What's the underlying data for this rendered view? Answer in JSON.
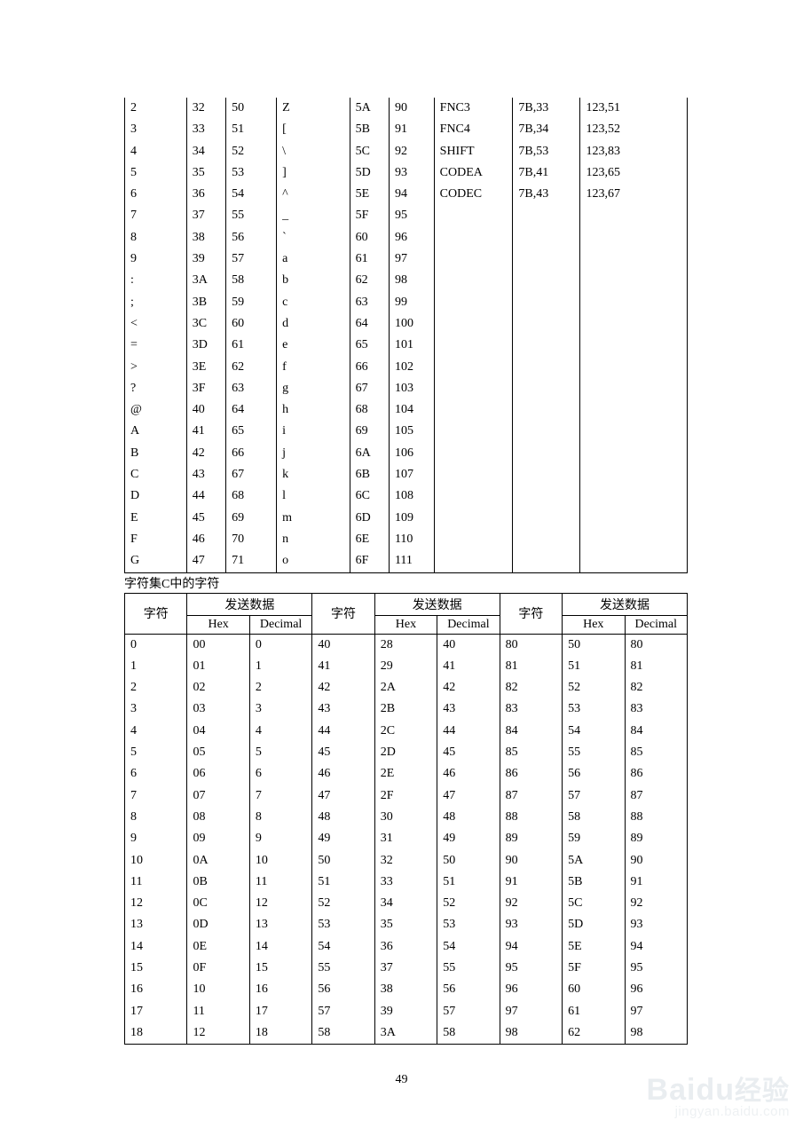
{
  "table1": {
    "rows": [
      [
        "2",
        "32",
        "50",
        "Z",
        "5A",
        "90",
        "FNC3",
        "7B,33",
        "123,51"
      ],
      [
        "3",
        "33",
        "51",
        "[",
        "5B",
        "91",
        "FNC4",
        "7B,34",
        "123,52"
      ],
      [
        "4",
        "34",
        "52",
        "\\",
        "5C",
        "92",
        "SHIFT",
        "7B,53",
        "123,83"
      ],
      [
        "5",
        "35",
        "53",
        "]",
        "5D",
        "93",
        "CODEA",
        "7B,41",
        "123,65"
      ],
      [
        "6",
        "36",
        "54",
        "^",
        "5E",
        "94",
        "CODEC",
        "7B,43",
        "123,67"
      ],
      [
        "7",
        "37",
        "55",
        "_",
        "5F",
        "95",
        "",
        "",
        ""
      ],
      [
        "8",
        "38",
        "56",
        "`",
        "60",
        "96",
        "",
        "",
        ""
      ],
      [
        "9",
        "39",
        "57",
        "a",
        "61",
        "97",
        "",
        "",
        ""
      ],
      [
        ":",
        "3A",
        "58",
        "b",
        "62",
        "98",
        "",
        "",
        ""
      ],
      [
        ";",
        "3B",
        "59",
        "c",
        "63",
        "99",
        "",
        "",
        ""
      ],
      [
        "<",
        "3C",
        "60",
        "d",
        "64",
        "100",
        "",
        "",
        ""
      ],
      [
        "=",
        "3D",
        "61",
        "e",
        "65",
        "101",
        "",
        "",
        ""
      ],
      [
        ">",
        "3E",
        "62",
        "f",
        "66",
        "102",
        "",
        "",
        ""
      ],
      [
        "?",
        "3F",
        "63",
        "g",
        "67",
        "103",
        "",
        "",
        ""
      ],
      [
        "@",
        "40",
        "64",
        "h",
        "68",
        "104",
        "",
        "",
        ""
      ],
      [
        "A",
        "41",
        "65",
        "i",
        "69",
        "105",
        "",
        "",
        ""
      ],
      [
        "B",
        "42",
        "66",
        "j",
        "6A",
        "106",
        "",
        "",
        ""
      ],
      [
        "C",
        "43",
        "67",
        "k",
        "6B",
        "107",
        "",
        "",
        ""
      ],
      [
        "D",
        "44",
        "68",
        "l",
        "6C",
        "108",
        "",
        "",
        ""
      ],
      [
        "E",
        "45",
        "69",
        "m",
        "6D",
        "109",
        "",
        "",
        ""
      ],
      [
        "F",
        "46",
        "70",
        "n",
        "6E",
        "110",
        "",
        "",
        ""
      ],
      [
        "G",
        "47",
        "71",
        "o",
        "6F",
        "111",
        "",
        "",
        ""
      ]
    ]
  },
  "caption": "字符集C中的字符",
  "table2": {
    "header": {
      "char": "字符",
      "send": "发送数据",
      "hex": "Hex",
      "dec": "Decimal"
    },
    "rows": [
      [
        "0",
        "00",
        "0",
        "40",
        "28",
        "40",
        "80",
        "50",
        "80"
      ],
      [
        "1",
        "01",
        "1",
        "41",
        "29",
        "41",
        "81",
        "51",
        "81"
      ],
      [
        "2",
        "02",
        "2",
        "42",
        "2A",
        "42",
        "82",
        "52",
        "82"
      ],
      [
        "3",
        "03",
        "3",
        "43",
        "2B",
        "43",
        "83",
        "53",
        "83"
      ],
      [
        "4",
        "04",
        "4",
        "44",
        "2C",
        "44",
        "84",
        "54",
        "84"
      ],
      [
        "5",
        "05",
        "5",
        "45",
        "2D",
        "45",
        "85",
        "55",
        "85"
      ],
      [
        "6",
        "06",
        "6",
        "46",
        "2E",
        "46",
        "86",
        "56",
        "86"
      ],
      [
        "7",
        "07",
        "7",
        "47",
        "2F",
        "47",
        "87",
        "57",
        "87"
      ],
      [
        "8",
        "08",
        "8",
        "48",
        "30",
        "48",
        "88",
        "58",
        "88"
      ],
      [
        "9",
        "09",
        "9",
        "49",
        "31",
        "49",
        "89",
        "59",
        "89"
      ],
      [
        "10",
        "0A",
        "10",
        "50",
        "32",
        "50",
        "90",
        "5A",
        "90"
      ],
      [
        "11",
        "0B",
        "11",
        "51",
        "33",
        "51",
        "91",
        "5B",
        "91"
      ],
      [
        "12",
        "0C",
        "12",
        "52",
        "34",
        "52",
        "92",
        "5C",
        "92"
      ],
      [
        "13",
        "0D",
        "13",
        "53",
        "35",
        "53",
        "93",
        "5D",
        "93"
      ],
      [
        "14",
        "0E",
        "14",
        "54",
        "36",
        "54",
        "94",
        "5E",
        "94"
      ],
      [
        "15",
        "0F",
        "15",
        "55",
        "37",
        "55",
        "95",
        "5F",
        "95"
      ],
      [
        "16",
        "10",
        "16",
        "56",
        "38",
        "56",
        "96",
        "60",
        "96"
      ],
      [
        "17",
        "11",
        "17",
        "57",
        "39",
        "57",
        "97",
        "61",
        "97"
      ],
      [
        "18",
        "12",
        "18",
        "58",
        "3A",
        "58",
        "98",
        "62",
        "98"
      ]
    ]
  },
  "pageNumber": "49",
  "watermark": {
    "brand": "Baidu",
    "brandCn": "经验",
    "url": "jingyan.baidu.com"
  }
}
